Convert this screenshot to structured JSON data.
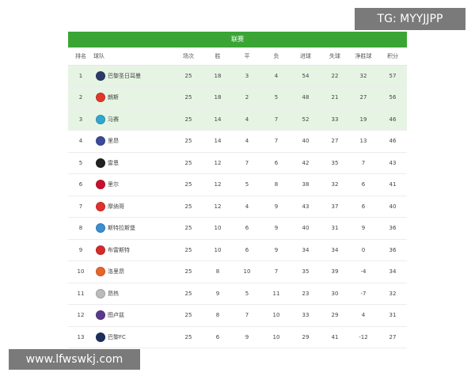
{
  "table": {
    "title": "联赛",
    "headers": [
      "排名",
      "球队",
      "场次",
      "胜",
      "平",
      "负",
      "进球",
      "失球",
      "净胜球",
      "积分"
    ],
    "rows": [
      {
        "rank": "1",
        "team": "巴黎圣日耳曼",
        "played": "25",
        "won": "18",
        "draw": "3",
        "lost": "4",
        "gf": "54",
        "ga": "22",
        "gd": "32",
        "pts": "57",
        "badge_color": "#2b3a67",
        "highlight": true
      },
      {
        "rank": "2",
        "team": "朗斯",
        "played": "25",
        "won": "18",
        "draw": "2",
        "lost": "5",
        "gf": "48",
        "ga": "21",
        "gd": "27",
        "pts": "56",
        "badge_color": "#e0382c",
        "highlight": true
      },
      {
        "rank": "3",
        "team": "马赛",
        "played": "25",
        "won": "14",
        "draw": "4",
        "lost": "7",
        "gf": "52",
        "ga": "33",
        "gd": "19",
        "pts": "46",
        "badge_color": "#33a6cf",
        "highlight": true
      },
      {
        "rank": "4",
        "team": "里昂",
        "played": "25",
        "won": "14",
        "draw": "4",
        "lost": "7",
        "gf": "40",
        "ga": "27",
        "gd": "13",
        "pts": "46",
        "badge_color": "#3b4a9c",
        "highlight": false
      },
      {
        "rank": "5",
        "team": "雷恩",
        "played": "25",
        "won": "12",
        "draw": "7",
        "lost": "6",
        "gf": "42",
        "ga": "35",
        "gd": "7",
        "pts": "43",
        "badge_color": "#222222",
        "highlight": false
      },
      {
        "rank": "6",
        "team": "里尔",
        "played": "25",
        "won": "12",
        "draw": "5",
        "lost": "8",
        "gf": "38",
        "ga": "32",
        "gd": "6",
        "pts": "41",
        "badge_color": "#c8102e",
        "highlight": false
      },
      {
        "rank": "7",
        "team": "摩纳哥",
        "played": "25",
        "won": "12",
        "draw": "4",
        "lost": "9",
        "gf": "43",
        "ga": "37",
        "gd": "6",
        "pts": "40",
        "badge_color": "#e2312d",
        "highlight": false
      },
      {
        "rank": "8",
        "team": "斯特拉斯堡",
        "played": "25",
        "won": "10",
        "draw": "6",
        "lost": "9",
        "gf": "40",
        "ga": "31",
        "gd": "9",
        "pts": "36",
        "badge_color": "#3a8fd0",
        "highlight": false
      },
      {
        "rank": "9",
        "team": "布雷斯特",
        "played": "25",
        "won": "10",
        "draw": "6",
        "lost": "9",
        "gf": "34",
        "ga": "34",
        "gd": "0",
        "pts": "36",
        "badge_color": "#d62b2b",
        "highlight": false
      },
      {
        "rank": "10",
        "team": "洛里昂",
        "played": "25",
        "won": "8",
        "draw": "10",
        "lost": "7",
        "gf": "35",
        "ga": "39",
        "gd": "-4",
        "pts": "34",
        "badge_color": "#e8642b",
        "highlight": false
      },
      {
        "rank": "11",
        "team": "昂热",
        "played": "25",
        "won": "9",
        "draw": "5",
        "lost": "11",
        "gf": "23",
        "ga": "30",
        "gd": "-7",
        "pts": "32",
        "badge_color": "#bbbbbb",
        "highlight": false
      },
      {
        "rank": "12",
        "team": "图卢兹",
        "played": "25",
        "won": "8",
        "draw": "7",
        "lost": "10",
        "gf": "33",
        "ga": "29",
        "gd": "4",
        "pts": "31",
        "badge_color": "#5b3a8c",
        "highlight": false
      },
      {
        "rank": "13",
        "team": "巴黎FC",
        "played": "25",
        "won": "6",
        "draw": "9",
        "lost": "10",
        "gf": "29",
        "ga": "41",
        "gd": "-12",
        "pts": "27",
        "badge_color": "#1f2f5c",
        "highlight": false
      }
    ]
  },
  "watermarks": {
    "top": "TG: MYYJJPP",
    "bottom": "www.lfwswkj.com"
  },
  "colors": {
    "title_bar": "#3aa535",
    "highlight_row": "#e6f4e4"
  }
}
